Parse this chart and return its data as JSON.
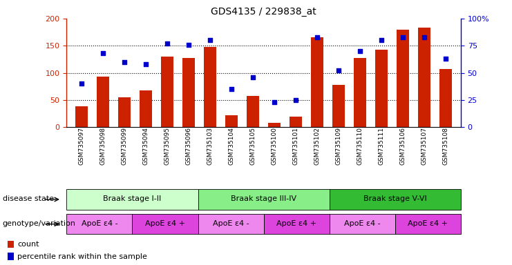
{
  "title": "GDS4135 / 229838_at",
  "samples": [
    "GSM735097",
    "GSM735098",
    "GSM735099",
    "GSM735094",
    "GSM735095",
    "GSM735096",
    "GSM735103",
    "GSM735104",
    "GSM735105",
    "GSM735100",
    "GSM735101",
    "GSM735102",
    "GSM735109",
    "GSM735110",
    "GSM735111",
    "GSM735106",
    "GSM735107",
    "GSM735108"
  ],
  "counts": [
    38,
    93,
    55,
    68,
    130,
    128,
    148,
    22,
    57,
    8,
    20,
    165,
    78,
    127,
    143,
    180,
    183,
    107
  ],
  "percentiles": [
    40,
    68,
    60,
    58,
    77,
    76,
    80,
    35,
    46,
    23,
    25,
    83,
    52,
    70,
    80,
    83,
    83,
    63
  ],
  "ylim_left": [
    0,
    200
  ],
  "bar_color": "#cc2200",
  "dot_color": "#0000cc",
  "disease_state_groups": [
    {
      "label": "Braak stage I-II",
      "start": 0,
      "end": 6,
      "color": "#ccffcc"
    },
    {
      "label": "Braak stage III-IV",
      "start": 6,
      "end": 12,
      "color": "#88ee88"
    },
    {
      "label": "Braak stage V-VI",
      "start": 12,
      "end": 18,
      "color": "#33bb33"
    }
  ],
  "genotype_groups": [
    {
      "label": "ApoE ε4 -",
      "start": 0,
      "end": 3,
      "color": "#ee88ee"
    },
    {
      "label": "ApoE ε4 +",
      "start": 3,
      "end": 6,
      "color": "#dd44dd"
    },
    {
      "label": "ApoE ε4 -",
      "start": 6,
      "end": 9,
      "color": "#ee88ee"
    },
    {
      "label": "ApoE ε4 +",
      "start": 9,
      "end": 12,
      "color": "#dd44dd"
    },
    {
      "label": "ApoE ε4 -",
      "start": 12,
      "end": 15,
      "color": "#ee88ee"
    },
    {
      "label": "ApoE ε4 +",
      "start": 15,
      "end": 18,
      "color": "#dd44dd"
    }
  ],
  "left_yticks": [
    0,
    50,
    100,
    150,
    200
  ],
  "right_yticks": [
    0,
    25,
    50,
    75,
    100
  ],
  "right_yticklabels": [
    "0",
    "25",
    "50",
    "75",
    "100%"
  ],
  "hgrid_vals": [
    50,
    100,
    150
  ]
}
